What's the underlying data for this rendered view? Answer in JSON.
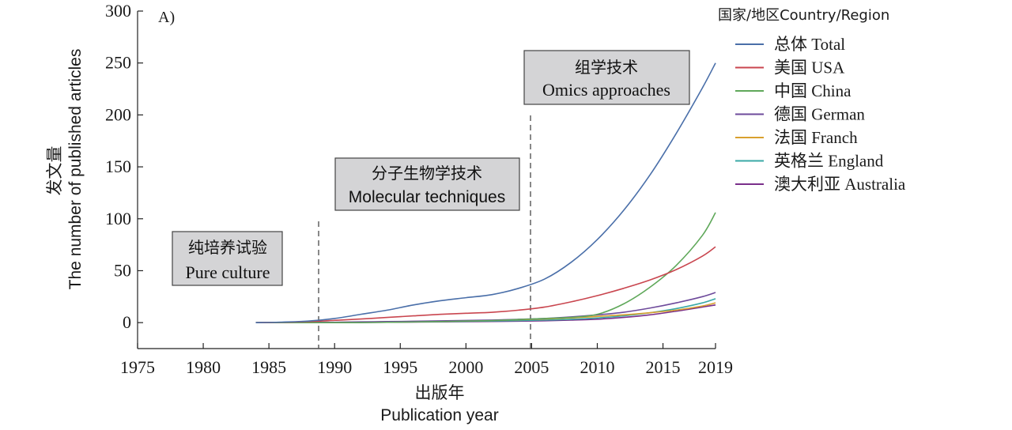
{
  "panel_label": "A)",
  "chart_data": {
    "type": "line",
    "xlabel_cn": "出版年",
    "xlabel_en": "Publication year",
    "ylabel_cn": "发文量",
    "ylabel_en": "The number of published articles",
    "xlim": [
      1975,
      2019
    ],
    "ylim": [
      -25,
      300
    ],
    "x_ticks": [
      1975,
      1980,
      1985,
      1990,
      1995,
      2000,
      2005,
      2010,
      2015,
      2019
    ],
    "y_ticks": [
      0,
      50,
      100,
      150,
      200,
      250,
      300
    ],
    "grid": false,
    "legend_position": "right",
    "legend_title": "国家/地区Country/Region",
    "x": [
      1984,
      1986,
      1988,
      1990,
      1992,
      1994,
      1996,
      1998,
      2000,
      2002,
      2004,
      2006,
      2008,
      2010,
      2012,
      2014,
      2016,
      2018,
      2019
    ],
    "series": [
      {
        "name": "总体 Total",
        "color": "#4a6fa9",
        "values": [
          0,
          0.5,
          1.5,
          4,
          8,
          12,
          17,
          21,
          24,
          27,
          33,
          42,
          58,
          80,
          108,
          142,
          182,
          226,
          250
        ]
      },
      {
        "name": "美国 USA",
        "color": "#c9464f",
        "values": [
          0,
          0.3,
          1,
          2.2,
          3.5,
          5,
          6.5,
          8,
          9,
          10,
          12,
          15,
          20,
          26,
          33,
          41,
          51,
          64,
          73
        ]
      },
      {
        "name": "中国 China",
        "color": "#5fa85a",
        "values": [
          0,
          0,
          0,
          0,
          0,
          0.3,
          0.6,
          1,
          1.5,
          2,
          3,
          4,
          5,
          8,
          18,
          34,
          55,
          84,
          106
        ]
      },
      {
        "name": "德国 German",
        "color": "#6e4a9b",
        "values": [
          0,
          0,
          0.2,
          0.4,
          0.7,
          1,
          1.3,
          1.7,
          2.1,
          2.5,
          3.2,
          4,
          5.5,
          7.5,
          10,
          14,
          19,
          25,
          29
        ]
      },
      {
        "name": "法国 Franch",
        "color": "#d9a02e",
        "values": [
          0,
          0,
          0.1,
          0.3,
          0.5,
          0.8,
          1.1,
          1.4,
          1.8,
          2.2,
          2.8,
          3.5,
          4.5,
          6,
          7.5,
          9.5,
          12,
          16,
          19
        ]
      },
      {
        "name": "英格兰 England",
        "color": "#3aa9a6",
        "values": [
          0,
          0,
          0.1,
          0.2,
          0.4,
          0.6,
          0.8,
          1,
          1.3,
          1.6,
          2,
          2.5,
          3.2,
          4.5,
          6.5,
          9.5,
          13.5,
          19,
          23
        ]
      },
      {
        "name": "澳大利亚 Australia",
        "color": "#7a2f8a",
        "values": [
          0,
          0,
          0,
          0.1,
          0.2,
          0.3,
          0.5,
          0.7,
          0.9,
          1.1,
          1.4,
          1.8,
          2.4,
          3.3,
          5,
          7.5,
          11,
          15,
          17
        ]
      }
    ],
    "dividers": [
      1989,
      2005
    ],
    "annotations": [
      {
        "cn": "纯培养试验",
        "en": "Pure culture"
      },
      {
        "cn": "分子生物学技术",
        "en": "Molecular techniques"
      },
      {
        "cn": "组学技术",
        "en": "Omics approaches"
      }
    ]
  }
}
